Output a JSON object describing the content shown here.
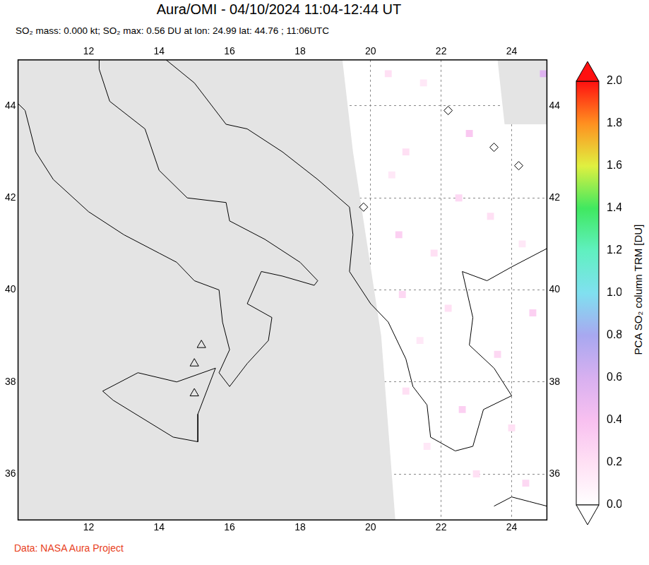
{
  "chart_data": {
    "type": "map",
    "title": "Aura/OMI - 04/10/2024 11:04-12:44 UT",
    "subtitle": "SO₂ mass: 0.000 kt; SO₂ max: 0.56 DU at lon: 24.99 lat: 44.76 ; 11:06UTC",
    "footer": "Data: NASA Aura Project",
    "xlim": [
      10,
      25
    ],
    "ylim": [
      35,
      45
    ],
    "xticks": [
      12,
      14,
      16,
      18,
      20,
      22,
      24
    ],
    "yticks": [
      36,
      38,
      40,
      42,
      44
    ],
    "grid": true,
    "no_data": {
      "color": "#e4e4e4",
      "regions": [
        [
          [
            10,
            35
          ],
          [
            10,
            45
          ],
          [
            19.2,
            45
          ],
          [
            19.5,
            43
          ],
          [
            19.9,
            41
          ],
          [
            20.3,
            39
          ],
          [
            20.7,
            35
          ]
        ],
        [
          [
            23.6,
            45
          ],
          [
            25,
            45
          ],
          [
            25,
            43.6
          ],
          [
            23.8,
            43.6
          ]
        ]
      ]
    },
    "coastlines": [
      [
        [
          10.0,
          44.05
        ],
        [
          10.2,
          43.9
        ],
        [
          10.5,
          43.0
        ],
        [
          11.0,
          42.4
        ],
        [
          12.0,
          41.7
        ],
        [
          13.0,
          41.2
        ],
        [
          14.0,
          40.8
        ],
        [
          14.5,
          40.6
        ],
        [
          15.0,
          40.2
        ],
        [
          15.7,
          40.0
        ],
        [
          15.8,
          39.3
        ],
        [
          16.0,
          38.7
        ],
        [
          15.7,
          38.2
        ],
        [
          16.0,
          37.9
        ],
        [
          16.5,
          38.4
        ],
        [
          17.1,
          38.9
        ],
        [
          17.2,
          39.4
        ],
        [
          16.5,
          39.7
        ],
        [
          16.9,
          40.4
        ],
        [
          17.5,
          40.3
        ],
        [
          18.4,
          40.1
        ],
        [
          18.5,
          40.2
        ],
        [
          18.0,
          40.6
        ],
        [
          17.0,
          41.1
        ],
        [
          16.0,
          41.5
        ],
        [
          15.9,
          41.9
        ],
        [
          14.8,
          42.0
        ],
        [
          14.0,
          42.6
        ],
        [
          13.6,
          43.5
        ],
        [
          12.6,
          44.1
        ],
        [
          12.3,
          44.8
        ],
        [
          12.3,
          45.0
        ]
      ],
      [
        [
          12.4,
          37.8
        ],
        [
          13.4,
          38.2
        ],
        [
          14.5,
          38.0
        ],
        [
          15.6,
          38.3
        ],
        [
          15.1,
          37.3
        ],
        [
          15.1,
          36.7
        ],
        [
          14.4,
          36.8
        ],
        [
          12.7,
          37.6
        ],
        [
          12.4,
          37.8
        ]
      ],
      [
        [
          14.2,
          45.0
        ],
        [
          15.0,
          44.5
        ],
        [
          15.9,
          43.6
        ],
        [
          16.5,
          43.5
        ],
        [
          17.5,
          43.0
        ],
        [
          18.5,
          42.4
        ],
        [
          19.4,
          41.8
        ],
        [
          19.5,
          41.2
        ],
        [
          19.4,
          40.4
        ],
        [
          20.0,
          39.7
        ],
        [
          20.5,
          39.3
        ],
        [
          21.0,
          38.5
        ],
        [
          21.2,
          37.9
        ],
        [
          21.6,
          37.5
        ],
        [
          21.7,
          36.8
        ],
        [
          22.4,
          36.5
        ],
        [
          22.9,
          36.6
        ],
        [
          23.2,
          37.4
        ],
        [
          24.0,
          37.7
        ],
        [
          23.5,
          38.3
        ],
        [
          22.8,
          38.8
        ],
        [
          22.9,
          39.4
        ],
        [
          22.6,
          40.4
        ],
        [
          23.3,
          40.2
        ],
        [
          24.0,
          40.5
        ],
        [
          25.0,
          40.9
        ]
      ],
      [
        [
          23.5,
          35.3
        ],
        [
          24.0,
          35.5
        ],
        [
          24.5,
          35.4
        ],
        [
          25.0,
          35.3
        ]
      ]
    ],
    "cells": [
      {
        "lon": 20.5,
        "lat": 44.7,
        "value": 0.2
      },
      {
        "lon": 21.5,
        "lat": 44.5,
        "value": 0.15
      },
      {
        "lon": 22.8,
        "lat": 43.4,
        "value": 0.35
      },
      {
        "lon": 21.0,
        "lat": 43.0,
        "value": 0.2
      },
      {
        "lon": 20.6,
        "lat": 42.5,
        "value": 0.15
      },
      {
        "lon": 22.5,
        "lat": 42.0,
        "value": 0.25
      },
      {
        "lon": 23.4,
        "lat": 41.6,
        "value": 0.2
      },
      {
        "lon": 20.8,
        "lat": 41.2,
        "value": 0.3
      },
      {
        "lon": 21.8,
        "lat": 40.8,
        "value": 0.2
      },
      {
        "lon": 24.3,
        "lat": 41.0,
        "value": 0.15
      },
      {
        "lon": 20.9,
        "lat": 39.9,
        "value": 0.25
      },
      {
        "lon": 22.2,
        "lat": 39.6,
        "value": 0.2
      },
      {
        "lon": 24.6,
        "lat": 39.5,
        "value": 0.3
      },
      {
        "lon": 21.4,
        "lat": 38.9,
        "value": 0.15
      },
      {
        "lon": 23.6,
        "lat": 38.6,
        "value": 0.25
      },
      {
        "lon": 21.0,
        "lat": 37.8,
        "value": 0.2
      },
      {
        "lon": 22.6,
        "lat": 37.4,
        "value": 0.3
      },
      {
        "lon": 24.0,
        "lat": 37.0,
        "value": 0.2
      },
      {
        "lon": 21.6,
        "lat": 36.6,
        "value": 0.15
      },
      {
        "lon": 23.0,
        "lat": 36.0,
        "value": 0.2
      },
      {
        "lon": 24.4,
        "lat": 35.8,
        "value": 0.25
      },
      {
        "lon": 24.9,
        "lat": 44.7,
        "value": 0.56
      }
    ],
    "markers": [
      {
        "lon": 15.2,
        "lat": 38.8,
        "marker": "triangle"
      },
      {
        "lon": 15.0,
        "lat": 38.4,
        "marker": "triangle"
      },
      {
        "lon": 15.0,
        "lat": 37.75,
        "marker": "triangle"
      },
      {
        "lon": 22.2,
        "lat": 43.9,
        "marker": "diamond"
      },
      {
        "lon": 24.2,
        "lat": 42.7,
        "marker": "diamond"
      },
      {
        "lon": 23.5,
        "lat": 43.1,
        "marker": "diamond"
      },
      {
        "lon": 19.8,
        "lat": 41.8,
        "marker": "diamond"
      }
    ],
    "colorbar": {
      "label": "PCA SO₂ column TRM [DU]",
      "lim": [
        0,
        2
      ],
      "ticks": [
        {
          "value": 0,
          "label": "0.0"
        },
        {
          "value": 0.2,
          "label": "0.2"
        },
        {
          "value": 0.4,
          "label": "0.4"
        },
        {
          "value": 0.6,
          "label": "0.6"
        },
        {
          "value": 0.8,
          "label": "0.8"
        },
        {
          "value": 1,
          "label": "1.0"
        },
        {
          "value": 1.2,
          "label": "1.2"
        },
        {
          "value": 1.4,
          "label": "1.4"
        },
        {
          "value": 1.6,
          "label": "1.6"
        },
        {
          "value": 1.8,
          "label": "1.8"
        },
        {
          "value": 2,
          "label": "2.0"
        }
      ],
      "colors": [
        "#ffffff",
        "#ffe0f4",
        "#f8c0f0",
        "#d8b0f0",
        "#a8a8f0",
        "#80e0f0",
        "#60f0c0",
        "#40e860",
        "#e0f040",
        "#ff9020",
        "#ff1010"
      ]
    }
  }
}
